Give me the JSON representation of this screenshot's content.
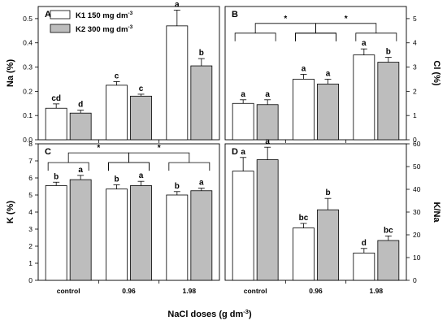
{
  "colors": {
    "k1_fill": "#ffffff",
    "k2_fill": "#bdbdbd",
    "axis": "#000000"
  },
  "legend": {
    "k1": "K1  150 mg dm",
    "k1_sup": "-3",
    "k2": "K2  300 mg dm",
    "k2_sup": "-3"
  },
  "x_title": "NaCl doses (g dm",
  "x_title_sup": "-3",
  "x_title_end": ")",
  "chart_data": [
    {
      "id": "A",
      "type": "bar",
      "panel_label": "A",
      "ylabel": "Na (%)",
      "yaxis_side": "left",
      "ylim": [
        0,
        0.55
      ],
      "yticks": [
        0,
        0.1,
        0.2,
        0.3,
        0.4,
        0.5
      ],
      "ytick_labels": [
        "0.0",
        "0.1",
        "0.2",
        "0.3",
        "0.4",
        "0.5"
      ],
      "categories": [
        "control",
        "0.96",
        "1.98"
      ],
      "show_xticklabels": false,
      "series": [
        {
          "name": "K1  150 mg dm-3",
          "values": [
            0.13,
            0.225,
            0.47
          ],
          "errors": [
            0.018,
            0.015,
            0.065
          ],
          "letters": [
            "cd",
            "c",
            "a"
          ]
        },
        {
          "name": "K2  300 mg dm-3",
          "values": [
            0.11,
            0.18,
            0.305
          ],
          "errors": [
            0.012,
            0.008,
            0.03
          ],
          "letters": [
            "d",
            "c",
            "b"
          ]
        }
      ],
      "brackets": []
    },
    {
      "id": "B",
      "type": "bar",
      "panel_label": "B",
      "ylabel": "Cl (%)",
      "yaxis_side": "right",
      "ylim": [
        0,
        5.5
      ],
      "yticks": [
        0,
        1,
        2,
        3,
        4,
        5
      ],
      "ytick_labels": [
        "0",
        "1",
        "2",
        "3",
        "4",
        "5"
      ],
      "categories": [
        "control",
        "0.96",
        "1.98"
      ],
      "show_xticklabels": false,
      "series": [
        {
          "name": "K1  150 mg dm-3",
          "values": [
            1.5,
            2.5,
            3.5
          ],
          "errors": [
            0.15,
            0.2,
            0.25
          ],
          "letters": [
            "a",
            "a",
            "a"
          ]
        },
        {
          "name": "K2  300 mg dm-3",
          "values": [
            1.45,
            2.3,
            3.2
          ],
          "errors": [
            0.2,
            0.2,
            0.2
          ],
          "letters": [
            "a",
            "a",
            "b"
          ]
        }
      ],
      "brackets": [
        {
          "from_group": 0,
          "to_group": 1,
          "y": 4.4,
          "label": "*"
        },
        {
          "from_group": 1,
          "to_group": 2,
          "y": 4.4,
          "label": "*"
        }
      ]
    },
    {
      "id": "C",
      "type": "bar",
      "panel_label": "C",
      "ylabel": "K (%)",
      "yaxis_side": "left",
      "ylim": [
        0,
        8
      ],
      "yticks": [
        0,
        1,
        2,
        3,
        4,
        5,
        6,
        7,
        8
      ],
      "ytick_labels": [
        "0",
        "1",
        "2",
        "3",
        "4",
        "5",
        "6",
        "7",
        "8"
      ],
      "categories": [
        "control",
        "0.96",
        "1.98"
      ],
      "show_xticklabels": true,
      "series": [
        {
          "name": "K1  150 mg dm-3",
          "values": [
            5.55,
            5.35,
            5.0
          ],
          "errors": [
            0.2,
            0.25,
            0.2
          ],
          "letters": [
            "b",
            "b",
            "b"
          ]
        },
        {
          "name": "K2  300 mg dm-3",
          "values": [
            5.9,
            5.55,
            5.25
          ],
          "errors": [
            0.25,
            0.25,
            0.15
          ],
          "letters": [
            "a",
            "a",
            "a"
          ]
        }
      ],
      "brackets": [
        {
          "from_group": 0,
          "to_group": 1,
          "y": 6.9,
          "label": "*"
        },
        {
          "from_group": 1,
          "to_group": 2,
          "y": 6.9,
          "label": "*"
        }
      ]
    },
    {
      "id": "D",
      "type": "bar",
      "panel_label": "D",
      "ylabel": "K/Na",
      "yaxis_side": "right",
      "ylim": [
        0,
        60
      ],
      "yticks": [
        0,
        10,
        20,
        30,
        40,
        50,
        60
      ],
      "ytick_labels": [
        "0",
        "10",
        "20",
        "30",
        "40",
        "50",
        "60"
      ],
      "categories": [
        "control",
        "0.96",
        "1.98"
      ],
      "show_xticklabels": true,
      "series": [
        {
          "name": "K1  150 mg dm-3",
          "values": [
            48,
            23,
            12
          ],
          "errors": [
            6,
            2,
            2
          ],
          "letters": [
            "a",
            "bc",
            "d"
          ]
        },
        {
          "name": "K2  300 mg dm-3",
          "values": [
            53,
            31,
            17.5
          ],
          "errors": [
            5.5,
            5,
            2
          ],
          "letters": [
            "a",
            "b",
            "bc"
          ]
        }
      ],
      "brackets": []
    }
  ]
}
